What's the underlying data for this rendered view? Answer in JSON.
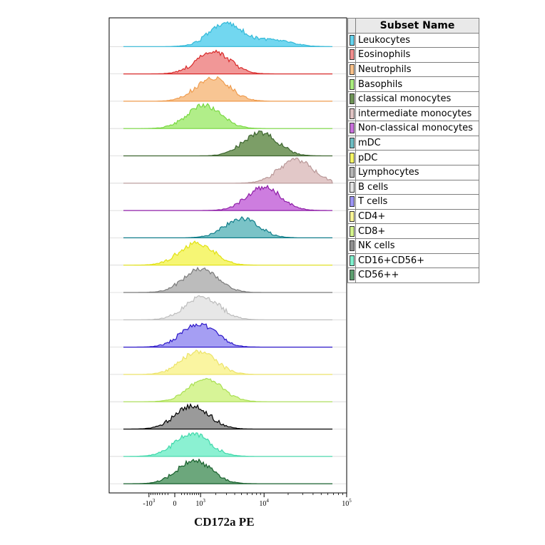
{
  "chart_data": {
    "type": "histogram-overlay",
    "xlabel": "CD172a PE",
    "x_scale": "biexponential",
    "x_ticks": [
      {
        "label": "-10",
        "sup": "3",
        "value": -1000
      },
      {
        "label": "0",
        "sup": "",
        "value": 0
      },
      {
        "label": "10",
        "sup": "3",
        "value": 1000
      },
      {
        "label": "10",
        "sup": "4",
        "value": 10000
      },
      {
        "label": "10",
        "sup": "5",
        "value": 100000
      }
    ],
    "legend_header": "Subset Name",
    "series": [
      {
        "name": "Leukocytes",
        "color": "#63d3ee",
        "stroke": "#33b9d8",
        "peaks": [
          {
            "center": 3000,
            "height": 0.9
          },
          {
            "center": 14000,
            "height": 0.23
          }
        ]
      },
      {
        "name": "Eosinophils",
        "color": "#ef8c8c",
        "stroke": "#d82a2a",
        "peaks": [
          {
            "center": 1800,
            "height": 0.85
          }
        ]
      },
      {
        "name": "Neutrophils",
        "color": "#f7bf87",
        "stroke": "#ef9c4f",
        "peaks": [
          {
            "center": 1800,
            "height": 0.9
          }
        ]
      },
      {
        "name": "Basophils",
        "color": "#a8ec7c",
        "stroke": "#78d840",
        "peaks": [
          {
            "center": 1200,
            "height": 0.9
          }
        ]
      },
      {
        "name": "classical monocytes",
        "color": "#6e9456",
        "stroke": "#3e6630",
        "peaks": [
          {
            "center": 9000,
            "height": 0.9
          }
        ]
      },
      {
        "name": "intermediate monocytes",
        "color": "#dfc2c2",
        "stroke": "#b99898",
        "peaks": [
          {
            "center": 25000,
            "height": 0.9
          }
        ]
      },
      {
        "name": "Non-classical monocytes",
        "color": "#c86fdb",
        "stroke": "#8f1fa8",
        "peaks": [
          {
            "center": 10000,
            "height": 0.9
          }
        ]
      },
      {
        "name": "mDC",
        "color": "#6cbcc1",
        "stroke": "#117e8a",
        "peaks": [
          {
            "center": 5000,
            "height": 0.75
          }
        ]
      },
      {
        "name": "pDC",
        "color": "#f5f565",
        "stroke": "#e1e114",
        "peaks": [
          {
            "center": 800,
            "height": 0.85
          }
        ]
      },
      {
        "name": "Lymphocytes",
        "color": "#b5b5b5",
        "stroke": "#7b7b7b",
        "peaks": [
          {
            "center": 1000,
            "height": 0.9
          }
        ]
      },
      {
        "name": "B cells",
        "color": "#e4e4e4",
        "stroke": "#bdbdbd",
        "peaks": [
          {
            "center": 1100,
            "height": 0.9
          }
        ]
      },
      {
        "name": "T cells",
        "color": "#9b93f2",
        "stroke": "#2a16c8",
        "peaks": [
          {
            "center": 900,
            "height": 0.9
          }
        ]
      },
      {
        "name": "CD4+",
        "color": "#f9f497",
        "stroke": "#ece36a",
        "peaks": [
          {
            "center": 900,
            "height": 0.9
          }
        ]
      },
      {
        "name": "CD8+",
        "color": "#d3f38c",
        "stroke": "#a9df52",
        "peaks": [
          {
            "center": 1300,
            "height": 0.9
          }
        ]
      },
      {
        "name": "NK cells",
        "color": "#8f8f8f",
        "stroke": "#000000",
        "peaks": [
          {
            "center": 600,
            "height": 0.9
          }
        ]
      },
      {
        "name": "CD16+CD56+",
        "color": "#7ef0cd",
        "stroke": "#3fd8aa",
        "peaks": [
          {
            "center": 600,
            "height": 0.9
          }
        ]
      },
      {
        "name": "CD56++",
        "color": "#5c9d6e",
        "stroke": "#165f2b",
        "peaks": [
          {
            "center": 700,
            "height": 0.9
          }
        ]
      }
    ]
  }
}
